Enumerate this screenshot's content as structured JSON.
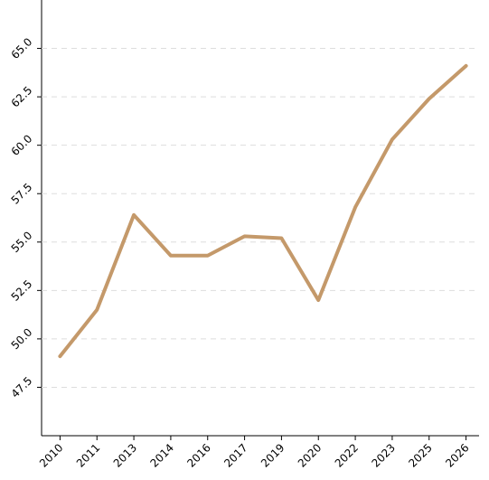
{
  "chart_data": {
    "type": "line",
    "categories": [
      "2010",
      "2011",
      "2013",
      "2014",
      "2016",
      "2017",
      "2019",
      "2020",
      "2022",
      "2023",
      "2025",
      "2026"
    ],
    "values": [
      49.1,
      51.5,
      56.4,
      54.3,
      54.3,
      55.3,
      55.2,
      52.0,
      56.8,
      60.3,
      62.4,
      64.1
    ],
    "color": "#c4996a",
    "ylim": [
      45,
      67.5
    ],
    "yticks": [
      {
        "value": 47.5,
        "label": "47.5"
      },
      {
        "value": 50,
        "label": "50.0"
      },
      {
        "value": 52.5,
        "label": "52.5"
      },
      {
        "value": 55,
        "label": "55.0"
      },
      {
        "value": 57.5,
        "label": "57.5"
      },
      {
        "value": 60,
        "label": "60.0"
      },
      {
        "value": 62.5,
        "label": "62.5"
      },
      {
        "value": 65,
        "label": "65.0"
      }
    ],
    "grid": true
  }
}
